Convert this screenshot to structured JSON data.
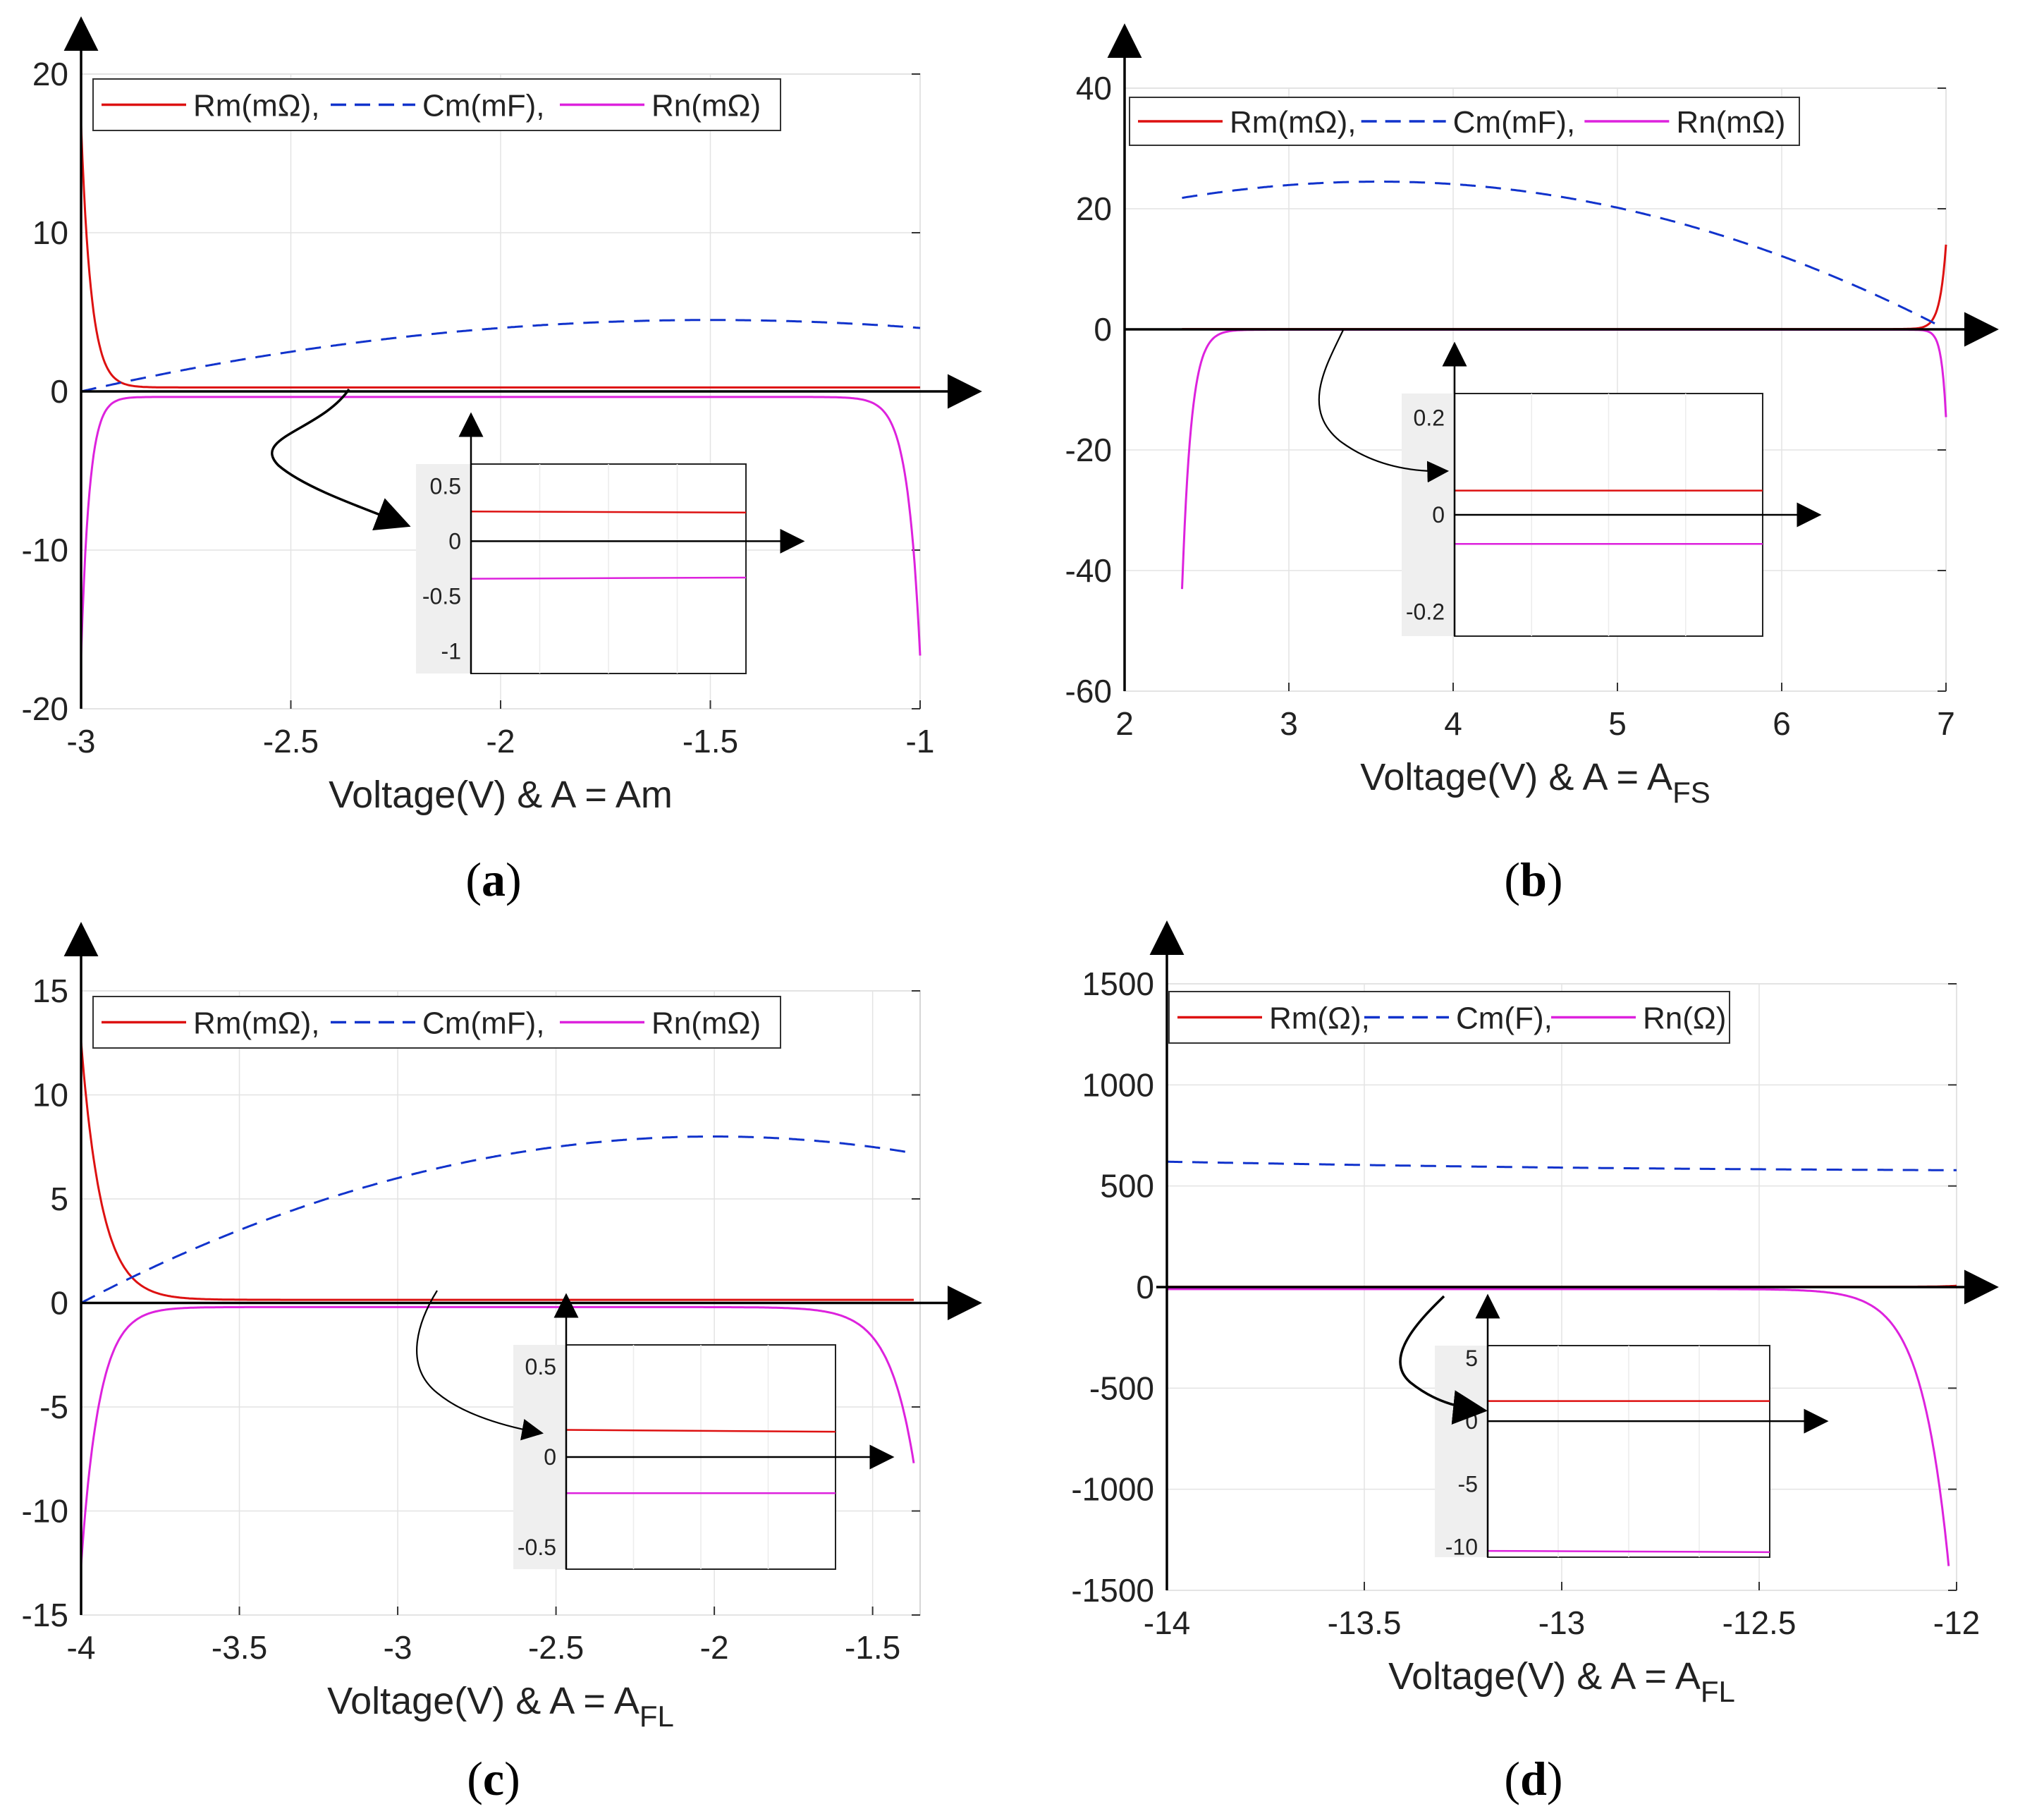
{
  "figure_captions": {
    "a": {
      "open": "(",
      "letter": "a",
      "close": ")"
    },
    "b": {
      "open": "(",
      "letter": "b",
      "close": ")"
    },
    "c": {
      "open": "(",
      "letter": "c",
      "close": ")"
    },
    "d": {
      "open": "(",
      "letter": "d",
      "close": ")"
    }
  },
  "colors": {
    "rm": "#dd1111",
    "cm": "#1133cc",
    "rn": "#dd22dd",
    "axis": "#000000",
    "grid": "#e3e3e3"
  },
  "chart_data": [
    {
      "id": "a",
      "type": "line",
      "xlabel_main": "Voltage(V) & A = Am",
      "xlabel_sub": "",
      "xlim": [
        -3,
        -1
      ],
      "ylim": [
        -20,
        20
      ],
      "xticks": [
        -3,
        -2.5,
        -2,
        -1.5,
        -1
      ],
      "xtick_labels": [
        "-3",
        "-2.5",
        "-2",
        "-1.5",
        "-1"
      ],
      "yticks": [
        -20,
        -10,
        0,
        10,
        20
      ],
      "ytick_labels": [
        "-20",
        "-10",
        "0",
        "10",
        "20"
      ],
      "grid": true,
      "legend_position": "top-left",
      "legend": [
        {
          "key": "rm",
          "label": "Rm(mΩ),",
          "style": "solid"
        },
        {
          "key": "cm",
          "label": "Cm(mF),",
          "style": "dashed"
        },
        {
          "key": "rn",
          "label": "Rn(mΩ)",
          "style": "solid"
        }
      ],
      "series": [
        {
          "name": "Rm(mΩ)",
          "key": "rm",
          "style": "solid",
          "model": "rm",
          "params": {
            "x0": -3,
            "x1": -1,
            "base": 0.25,
            "amp": 16.5,
            "tau": 0.012
          }
        },
        {
          "name": "Cm(mF)",
          "key": "cm",
          "style": "dashed",
          "model": "cap",
          "params": {
            "x0": -3,
            "x1": -1,
            "y0": 0,
            "peak": 4.5,
            "xpeak": -1.5,
            "yend": 4.0
          }
        },
        {
          "name": "Rn(mΩ)",
          "key": "rn",
          "style": "solid",
          "model": "rn",
          "params": {
            "x0": -3,
            "x1": -1,
            "base": -0.35,
            "leftAmp": 16.3,
            "leftTau": 0.01,
            "rightAmp": 16.3,
            "rightTau": 0.015
          }
        }
      ],
      "inset": {
        "ylim": [
          -1.2,
          0.7
        ],
        "yticks": [
          0.5,
          0,
          -0.5,
          -1
        ],
        "ytick_labels": [
          "0.5",
          "0",
          "-0.5",
          "-1"
        ],
        "rm_level": [
          0.27,
          0.26
        ],
        "rn_level": [
          -0.34,
          -0.33
        ]
      }
    },
    {
      "id": "b",
      "type": "line",
      "xlabel_main": "Voltage(V) & A = A",
      "xlabel_sub": "FS",
      "xlim": [
        2,
        7
      ],
      "ylim": [
        -60,
        40
      ],
      "xticks": [
        2,
        3,
        4,
        5,
        6,
        7
      ],
      "xtick_labels": [
        "2",
        "3",
        "4",
        "5",
        "6",
        "7"
      ],
      "yticks": [
        -60,
        -40,
        -20,
        0,
        20,
        40
      ],
      "ytick_labels": [
        "-60",
        "-40",
        "-20",
        "0",
        "20",
        "40"
      ],
      "grid": true,
      "legend_position": "top-left",
      "legend": [
        {
          "key": "rm",
          "label": "Rm(mΩ),",
          "style": "solid"
        },
        {
          "key": "cm",
          "label": "Cm(mF),",
          "style": "dashed"
        },
        {
          "key": "rn",
          "label": "Rn(mΩ)",
          "style": "solid"
        }
      ],
      "series": [
        {
          "name": "Rm(mΩ)",
          "key": "rm",
          "style": "solid",
          "model": "rmb",
          "params": {
            "x0": 2.35,
            "x1": 7,
            "base": 0.05,
            "amp": 14,
            "tau": 0.008
          }
        },
        {
          "name": "Cm(mF)",
          "key": "cm",
          "style": "dashed",
          "model": "cap",
          "params": {
            "x0": 2.35,
            "x1": 6.98,
            "y0": 21.8,
            "peak": 24.5,
            "xpeak": 3.55,
            "yend": 0.3
          }
        },
        {
          "name": "Rn(mΩ)",
          "key": "rn",
          "style": "solid",
          "model": "rn",
          "params": {
            "x0": 2.35,
            "x1": 7,
            "base": -0.06,
            "leftAmp": 43,
            "leftTau": 0.012,
            "rightAmp": 14.5,
            "rightTau": 0.006
          }
        }
      ],
      "inset": {
        "ylim": [
          -0.25,
          0.25
        ],
        "yticks": [
          0.2,
          0,
          -0.2
        ],
        "ytick_labels": [
          "0.2",
          "0",
          "-0.2"
        ],
        "rm_level": [
          0.05,
          0.05
        ],
        "rn_level": [
          -0.06,
          -0.06
        ]
      }
    },
    {
      "id": "c",
      "type": "line",
      "xlabel_main": "Voltage(V) & A = A",
      "xlabel_sub": "FL",
      "xlim": [
        -4,
        -1.35
      ],
      "ylim": [
        -15,
        15
      ],
      "xticks": [
        -4,
        -3.5,
        -3,
        -2.5,
        -2,
        -1.5
      ],
      "xtick_labels": [
        "-4",
        "-3.5",
        "-3",
        "-2.5",
        "-2",
        "-1.5"
      ],
      "yticks": [
        -15,
        -10,
        -5,
        0,
        5,
        10,
        15
      ],
      "ytick_labels": [
        "-15",
        "-10",
        "-5",
        "0",
        "5",
        "10",
        "15"
      ],
      "grid": true,
      "legend_position": "top-left",
      "legend": [
        {
          "key": "rm",
          "label": "Rm(mΩ),",
          "style": "solid"
        },
        {
          "key": "cm",
          "label": "Cm(mF),",
          "style": "dashed"
        },
        {
          "key": "rn",
          "label": "Rn(mΩ)",
          "style": "solid"
        }
      ],
      "series": [
        {
          "name": "Rm(mΩ)",
          "key": "rm",
          "style": "solid",
          "model": "rm",
          "params": {
            "x0": -4,
            "x1": -1.37,
            "base": 0.15,
            "amp": 12.4,
            "tau": 0.025
          }
        },
        {
          "name": "Cm(mF)",
          "key": "cm",
          "style": "dashed",
          "model": "cap",
          "params": {
            "x0": -4,
            "x1": -1.37,
            "y0": 0,
            "peak": 8.0,
            "xpeak": -2.0,
            "yend": 7.2
          }
        },
        {
          "name": "Rn(mΩ)",
          "key": "rn",
          "style": "solid",
          "model": "rn",
          "params": {
            "x0": -4,
            "x1": -1.37,
            "base": -0.2,
            "leftAmp": 12.4,
            "leftTau": 0.022,
            "rightAmp": 7.5,
            "rightTau": 0.03
          }
        }
      ],
      "inset": {
        "ylim": [
          -0.62,
          0.62
        ],
        "yticks": [
          0.5,
          0,
          -0.5
        ],
        "ytick_labels": [
          "0.5",
          "0",
          "-0.5"
        ],
        "rm_level": [
          0.15,
          0.14
        ],
        "rn_level": [
          -0.2,
          -0.2
        ]
      }
    },
    {
      "id": "d",
      "type": "line",
      "xlabel_main": "Voltage(V) & A = A",
      "xlabel_sub": "FL",
      "xlim": [
        -14,
        -12
      ],
      "ylim": [
        -1500,
        1500
      ],
      "xticks": [
        -14,
        -13.5,
        -13,
        -12.5,
        -12
      ],
      "xtick_labels": [
        "-14",
        "-13.5",
        "-13",
        "-12.5",
        "-12"
      ],
      "yticks": [
        -1500,
        -1000,
        -500,
        0,
        500,
        1000,
        1500
      ],
      "ytick_labels": [
        "-1500",
        "-1000",
        "-500",
        "0",
        "500",
        "1000",
        "1500"
      ],
      "grid": true,
      "legend_position": "top-left",
      "legend": [
        {
          "key": "rm",
          "label": "Rm(Ω),",
          "style": "solid"
        },
        {
          "key": "cm",
          "label": "Cm(F),",
          "style": "dashed"
        },
        {
          "key": "rn",
          "label": "Rn(Ω)",
          "style": "solid"
        }
      ],
      "series": [
        {
          "name": "Rm(Ω)",
          "key": "rm",
          "style": "solid",
          "model": "rmb",
          "params": {
            "x0": -14,
            "x1": -12,
            "base": 1.5,
            "amp": 5,
            "tau": 0.02
          }
        },
        {
          "name": "Cm(F)",
          "key": "cm",
          "style": "dashed",
          "model": "lin",
          "params": {
            "x0": -14,
            "x1": -12,
            "y0": 620,
            "y1": 578,
            "sag": 8
          }
        },
        {
          "name": "Rn(Ω)",
          "key": "rn",
          "style": "solid",
          "model": "rn",
          "params": {
            "x0": -14,
            "x1": -12.02,
            "base": -10,
            "leftAmp": 0,
            "leftTau": 0.01,
            "rightAmp": 1370,
            "rightTau": 0.035
          }
        }
      ],
      "inset": {
        "ylim": [
          -10.8,
          6
        ],
        "yticks": [
          5,
          0,
          -5,
          -10
        ],
        "ytick_labels": [
          "5",
          "0",
          "-5",
          "-10"
        ],
        "rm_level": [
          1.6,
          1.6
        ],
        "rn_level": [
          -10.3,
          -10.4
        ]
      }
    }
  ]
}
